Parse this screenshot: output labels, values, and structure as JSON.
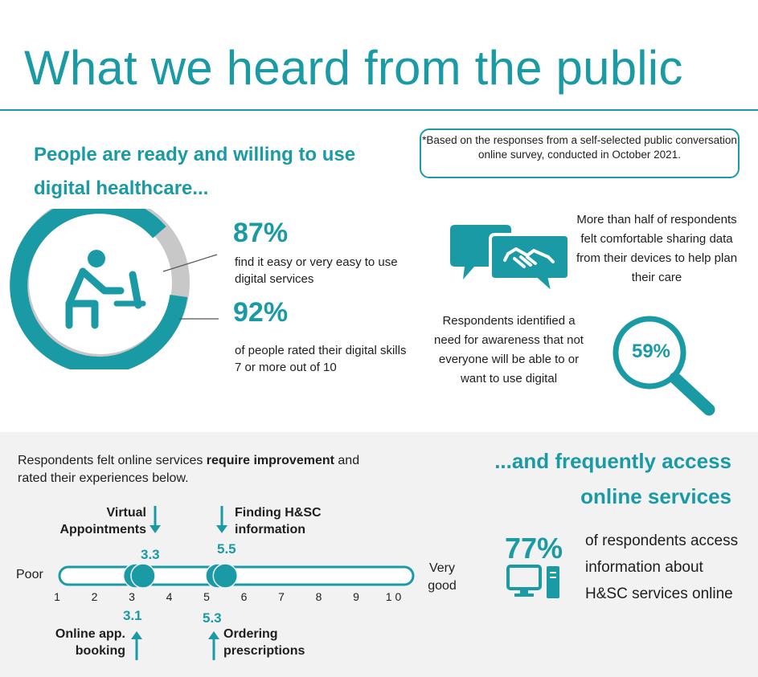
{
  "title": "What we heard from the public",
  "headline": "People are ready and willing to use digital healthcare...",
  "footnote": "*Based on the responses from a self-selected public conversation online survey, conducted in October 2021.",
  "stats": {
    "easy_pct": "87%",
    "easy_text": "find it easy or very easy to use digital services",
    "skills_pct": "92%",
    "skills_text": "of people rated their digital skills 7 or more out of 10",
    "share_pct": "59%",
    "share_text": "More than half of respondents felt comfortable sharing data from their devices to help plan their care",
    "aware_text": "Respondents identified a need for awareness that not everyone will be able to or want to use digital"
  },
  "improve": {
    "prefix": "Respondents felt online services ",
    "bold": "require improvement",
    "suffix": " and rated their experiences below."
  },
  "scale": {
    "low_label": "Poor",
    "high_label": "Very good",
    "ticks": [
      "1",
      "2",
      "3",
      "4",
      "5",
      "6",
      "7",
      "8",
      "9",
      "1 0"
    ],
    "top_items": [
      {
        "label": "Virtual Appointments",
        "value": "3.3"
      },
      {
        "label": "Finding H&SC information",
        "value": "5.5"
      }
    ],
    "bottom_items": [
      {
        "label": "Online app. booking",
        "value": "3.1"
      },
      {
        "label": "Ordering prescriptions",
        "value": "5.3"
      }
    ]
  },
  "frequent": {
    "heading": "...and frequently access online services",
    "pct": "77%",
    "text": "of respondents access information about H&SC services online"
  },
  "colors": {
    "accent": "#1a9aa5",
    "ring_gray": "#c8c8c8",
    "panel": "#f2f2f2"
  },
  "icons": [
    "person-at-computer-icon",
    "handshake-speech-bubble-icon",
    "magnifier-icon",
    "computer-icon",
    "arrow-down-icon",
    "arrow-up-icon"
  ]
}
